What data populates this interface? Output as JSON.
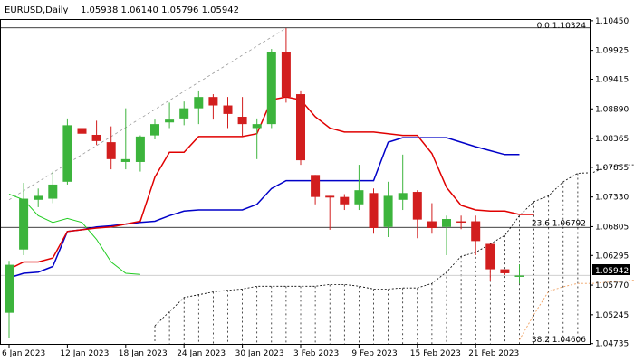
{
  "header": {
    "symbol": "EURUSD,Daily",
    "ohlc": "1.05938 1.06140 1.05796 1.05942"
  },
  "current_price_label": "1.05942",
  "chart_data": {
    "type": "candlestick",
    "y_range": [
      1.0473,
      1.1048
    ],
    "y_ticks": [
      {
        "v": 1.1045,
        "label": "1.10450"
      },
      {
        "v": 1.09925,
        "label": "1.09925"
      },
      {
        "v": 1.09415,
        "label": "1.09415"
      },
      {
        "v": 1.0889,
        "label": "1.08890"
      },
      {
        "v": 1.08365,
        "label": "1.08365"
      },
      {
        "v": 1.07855,
        "label": "1.07855"
      },
      {
        "v": 1.0733,
        "label": "1.07330"
      },
      {
        "v": 1.06805,
        "label": "1.06805"
      },
      {
        "v": 1.06295,
        "label": "1.06295"
      },
      {
        "v": 1.0577,
        "label": "1.05770"
      },
      {
        "v": 1.05245,
        "label": "1.05245"
      },
      {
        "v": 1.04735,
        "label": "1.04735"
      }
    ],
    "x_ticks": [
      {
        "i": 0,
        "label": "6 Jan 2023"
      },
      {
        "i": 4,
        "label": "12 Jan 2023"
      },
      {
        "i": 8,
        "label": "18 Jan 2023"
      },
      {
        "i": 12,
        "label": "24 Jan 2023"
      },
      {
        "i": 16,
        "label": "30 Jan 2023"
      },
      {
        "i": 20,
        "label": "3 Feb 2023"
      },
      {
        "i": 24,
        "label": "9 Feb 2023"
      },
      {
        "i": 28,
        "label": "15 Feb 2023"
      },
      {
        "i": 32,
        "label": "21 Feb 2023"
      }
    ],
    "candles": [
      {
        "o": 1.0528,
        "h": 1.062,
        "l": 1.0484,
        "c": 1.0613
      },
      {
        "o": 1.064,
        "h": 1.0758,
        "l": 1.063,
        "c": 1.073
      },
      {
        "o": 1.0728,
        "h": 1.0748,
        "l": 1.0715,
        "c": 1.0735
      },
      {
        "o": 1.073,
        "h": 1.0778,
        "l": 1.0722,
        "c": 1.0755
      },
      {
        "o": 1.076,
        "h": 1.0872,
        "l": 1.0755,
        "c": 1.086
      },
      {
        "o": 1.0855,
        "h": 1.0866,
        "l": 1.08,
        "c": 1.0845
      },
      {
        "o": 1.0843,
        "h": 1.0868,
        "l": 1.0825,
        "c": 1.0832
      },
      {
        "o": 1.083,
        "h": 1.0858,
        "l": 1.0782,
        "c": 1.08
      },
      {
        "o": 1.0795,
        "h": 1.089,
        "l": 1.0782,
        "c": 1.08
      },
      {
        "o": 1.0795,
        "h": 1.0842,
        "l": 1.0778,
        "c": 1.084
      },
      {
        "o": 1.0842,
        "h": 1.087,
        "l": 1.0835,
        "c": 1.0862
      },
      {
        "o": 1.0865,
        "h": 1.09,
        "l": 1.0855,
        "c": 1.087
      },
      {
        "o": 1.0872,
        "h": 1.0902,
        "l": 1.086,
        "c": 1.089
      },
      {
        "o": 1.089,
        "h": 1.092,
        "l": 1.0862,
        "c": 1.091
      },
      {
        "o": 1.091,
        "h": 1.0915,
        "l": 1.087,
        "c": 1.0895
      },
      {
        "o": 1.0895,
        "h": 1.091,
        "l": 1.0855,
        "c": 1.088
      },
      {
        "o": 1.0875,
        "h": 1.091,
        "l": 1.084,
        "c": 1.0862
      },
      {
        "o": 1.0855,
        "h": 1.0872,
        "l": 1.08,
        "c": 1.0862
      },
      {
        "o": 1.0862,
        "h": 1.0995,
        "l": 1.0855,
        "c": 1.099
      },
      {
        "o": 1.099,
        "h": 1.1032,
        "l": 1.09,
        "c": 1.091
      },
      {
        "o": 1.0915,
        "h": 1.092,
        "l": 1.079,
        "c": 1.0798
      },
      {
        "o": 1.0772,
        "h": 1.0772,
        "l": 1.072,
        "c": 1.0733
      },
      {
        "o": 1.0735,
        "h": 1.0735,
        "l": 1.0675,
        "c": 1.0732
      },
      {
        "o": 1.0733,
        "h": 1.0738,
        "l": 1.071,
        "c": 1.072
      },
      {
        "o": 1.072,
        "h": 1.079,
        "l": 1.071,
        "c": 1.0745
      },
      {
        "o": 1.074,
        "h": 1.0748,
        "l": 1.0668,
        "c": 1.0678
      },
      {
        "o": 1.068,
        "h": 1.076,
        "l": 1.0662,
        "c": 1.0735
      },
      {
        "o": 1.0728,
        "h": 1.0808,
        "l": 1.071,
        "c": 1.074
      },
      {
        "o": 1.0742,
        "h": 1.0745,
        "l": 1.066,
        "c": 1.0693
      },
      {
        "o": 1.069,
        "h": 1.0722,
        "l": 1.0668,
        "c": 1.0678
      },
      {
        "o": 1.068,
        "h": 1.07,
        "l": 1.063,
        "c": 1.0694
      },
      {
        "o": 1.069,
        "h": 1.07,
        "l": 1.0676,
        "c": 1.0688
      },
      {
        "o": 1.069,
        "h": 1.07,
        "l": 1.063,
        "c": 1.0655
      },
      {
        "o": 1.065,
        "h": 1.065,
        "l": 1.0585,
        "c": 1.0605
      },
      {
        "o": 1.0605,
        "h": 1.0605,
        "l": 1.0595,
        "c": 1.0598
      },
      {
        "o": 1.0594,
        "h": 1.0614,
        "l": 1.058,
        "c": 1.0594
      }
    ],
    "red_line": [
      1.0605,
      1.0618,
      1.0618,
      1.0625,
      1.0672,
      1.0675,
      1.0678,
      1.068,
      1.0685,
      1.069,
      1.0768,
      1.0812,
      1.0812,
      1.084,
      1.084,
      1.084,
      1.084,
      1.0845,
      1.0905,
      1.091,
      1.0905,
      1.0875,
      1.0855,
      1.0848,
      1.0848,
      1.0848,
      1.0845,
      1.0842,
      1.0842,
      1.081,
      1.075,
      1.0718,
      1.071,
      1.0708,
      1.0708,
      1.0702,
      1.0702
    ],
    "blue_line": [
      1.059,
      1.0598,
      1.06,
      1.061,
      1.0672,
      1.0675,
      1.068,
      1.0682,
      1.0685,
      1.0688,
      1.069,
      1.07,
      1.0708,
      1.071,
      1.071,
      1.071,
      1.071,
      1.072,
      1.0748,
      1.0762,
      1.0762,
      1.0762,
      1.0762,
      1.0762,
      1.0762,
      1.0762,
      1.083,
      1.0838,
      1.0838,
      1.0838,
      1.0838,
      1.083,
      1.0822,
      1.0815,
      1.0808,
      1.0808
    ],
    "green_line": [
      1.0738,
      1.0728,
      1.07,
      1.0688,
      1.0695,
      1.0688,
      1.0658,
      1.0618,
      1.0598,
      1.0596
    ],
    "cloud_upper": [
      null,
      null,
      null,
      null,
      null,
      null,
      null,
      null,
      null,
      null,
      null,
      null,
      1.0505,
      1.053,
      1.0555,
      1.056,
      1.0565,
      1.0568,
      1.057,
      1.0575,
      1.0575,
      1.0575,
      1.0575,
      1.0575,
      1.0578,
      1.0578,
      1.0575,
      1.057,
      1.057,
      1.0572,
      1.0572,
      1.058,
      1.06,
      1.0628,
      1.0635,
      1.065,
      1.0665,
      1.07,
      1.0725,
      1.0735,
      1.076,
      1.0775,
      1.0776,
      1.0786,
      1.079,
      1.079
    ],
    "cloud_lower": [
      null,
      null,
      null,
      null,
      null,
      null,
      null,
      null,
      null,
      null,
      null,
      null,
      1.0473,
      1.0473,
      1.0473,
      1.0473,
      1.0473,
      1.0473,
      1.0473,
      1.0473,
      1.0473,
      1.0473,
      1.0473,
      1.0473,
      1.0473,
      1.0473,
      1.0473,
      1.0473,
      1.0473,
      1.0473,
      1.0473,
      1.0473,
      1.0473,
      1.0473,
      1.0473,
      1.0473,
      1.0473,
      1.0473,
      1.0473,
      1.0473,
      1.0473,
      1.0473,
      1.0473,
      1.0473,
      1.0473,
      1.0473
    ],
    "cloud_orange": [
      null,
      null,
      null,
      null,
      null,
      null,
      null,
      null,
      null,
      null,
      null,
      null,
      null,
      null,
      null,
      null,
      null,
      null,
      null,
      null,
      null,
      null,
      null,
      null,
      null,
      null,
      null,
      null,
      null,
      null,
      null,
      null,
      null,
      null,
      null,
      null,
      null,
      1.048,
      1.0525,
      1.0566,
      1.0574,
      1.058,
      1.058,
      1.0582,
      1.0584,
      1.0586
    ],
    "fib_levels": [
      {
        "price": 1.10324,
        "label": "0.0 1.10324"
      },
      {
        "price": 1.06792,
        "label": "23.6 1.06792"
      },
      {
        "price": 1.04606,
        "label": "38.2 1.04606"
      }
    ],
    "trend_line": {
      "from": {
        "i": 0,
        "p": 1.0728
      },
      "to": {
        "i": 19,
        "p": 1.1032
      }
    },
    "current_price": 1.05942,
    "colors": {
      "bull": "#3cb43c",
      "bear": "#d21e1e",
      "red_line": "#e00000",
      "blue_line": "#0000c8",
      "green_line": "#22cc22",
      "cloud": "#000000",
      "orange": "#f0a060",
      "axis": "#000000",
      "fib": "#000000",
      "dashed": "#999999"
    }
  }
}
